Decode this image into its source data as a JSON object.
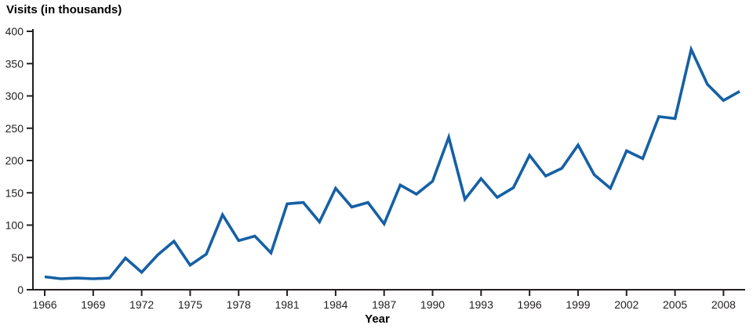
{
  "chart": {
    "title": "Visits (in thousands)",
    "xlabel": "Year"
  },
  "chart_data": {
    "type": "line",
    "title": "Visits (in thousands)",
    "xlabel": "Year",
    "ylabel": "Visits (in thousands)",
    "x": [
      1966,
      1967,
      1968,
      1969,
      1970,
      1971,
      1972,
      1973,
      1974,
      1975,
      1976,
      1977,
      1978,
      1979,
      1980,
      1981,
      1982,
      1983,
      1984,
      1985,
      1986,
      1987,
      1988,
      1989,
      1990,
      1991,
      1992,
      1993,
      1994,
      1995,
      1996,
      1997,
      1998,
      1999,
      2000,
      2001,
      2002,
      2003,
      2004,
      2005,
      2006,
      2007,
      2008,
      2009
    ],
    "values": [
      20,
      17,
      18,
      17,
      18,
      49,
      27,
      54,
      75,
      38,
      55,
      116,
      76,
      83,
      57,
      133,
      135,
      105,
      157,
      128,
      135,
      102,
      162,
      148,
      168,
      236,
      140,
      172,
      143,
      158,
      208,
      176,
      188,
      224,
      178,
      157,
      215,
      203,
      268,
      265,
      372,
      318,
      293,
      307
    ],
    "ylim": [
      0,
      400
    ],
    "yticks": [
      0,
      50,
      100,
      150,
      200,
      250,
      300,
      350,
      400
    ],
    "xticks": [
      1966,
      1969,
      1972,
      1975,
      1978,
      1981,
      1984,
      1987,
      1990,
      1993,
      1996,
      1999,
      2002,
      2005,
      2008
    ],
    "grid": false,
    "legend": "none",
    "line_color": "#1560a5",
    "axis_color": "#231f20"
  }
}
